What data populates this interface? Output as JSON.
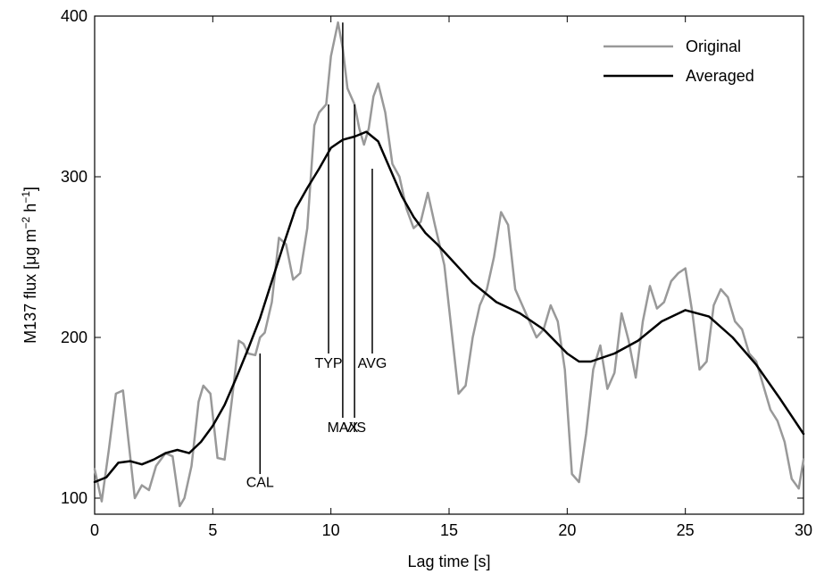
{
  "chart_data": {
    "type": "line",
    "xlabel": "Lag time [s]",
    "ylabel_parts": {
      "prefix": "M137 flux [μg m",
      "exp1": "−2",
      "mid": " h",
      "exp2": "−1",
      "suffix": "]"
    },
    "xlim": [
      0,
      30
    ],
    "ylim": [
      90,
      400
    ],
    "x_ticks": [
      0,
      5,
      10,
      15,
      20,
      25,
      30
    ],
    "y_ticks": [
      100,
      200,
      300,
      400
    ],
    "grid": false,
    "legend_position": "top-right",
    "series": [
      {
        "name": "Original",
        "color": "#999999",
        "x": [
          0,
          0.3,
          0.6,
          0.9,
          1.2,
          1.4,
          1.7,
          2.0,
          2.3,
          2.6,
          3.0,
          3.3,
          3.6,
          3.8,
          4.1,
          4.4,
          4.6,
          4.9,
          5.2,
          5.5,
          5.8,
          6.1,
          6.3,
          6.5,
          6.8,
          7.0,
          7.2,
          7.5,
          7.8,
          8.1,
          8.4,
          8.7,
          9.0,
          9.3,
          9.5,
          9.8,
          10.0,
          10.3,
          10.5,
          10.7,
          11.0,
          11.2,
          11.4,
          11.6,
          11.8,
          12.0,
          12.3,
          12.6,
          12.9,
          13.2,
          13.5,
          13.8,
          14.1,
          14.4,
          14.8,
          15.1,
          15.4,
          15.7,
          16.0,
          16.3,
          16.6,
          16.9,
          17.2,
          17.5,
          17.8,
          18.1,
          18.4,
          18.7,
          19.0,
          19.3,
          19.6,
          19.9,
          20.2,
          20.5,
          20.8,
          21.1,
          21.4,
          21.7,
          22.0,
          22.3,
          22.6,
          22.9,
          23.2,
          23.5,
          23.8,
          24.1,
          24.4,
          24.7,
          25.0,
          25.3,
          25.6,
          25.9,
          26.2,
          26.5,
          26.8,
          27.1,
          27.4,
          27.7,
          28.0,
          28.3,
          28.6,
          28.9,
          29.2,
          29.5,
          29.8,
          30.0
        ],
        "y": [
          118,
          98,
          130,
          165,
          167,
          140,
          100,
          108,
          105,
          120,
          128,
          126,
          95,
          100,
          120,
          160,
          170,
          165,
          125,
          124,
          160,
          198,
          196,
          190,
          189,
          200,
          203,
          222,
          262,
          258,
          236,
          240,
          268,
          332,
          340,
          345,
          375,
          396,
          380,
          355,
          345,
          330,
          320,
          330,
          350,
          358,
          340,
          308,
          300,
          280,
          268,
          272,
          290,
          270,
          245,
          205,
          165,
          170,
          200,
          220,
          230,
          250,
          278,
          270,
          230,
          220,
          210,
          200,
          205,
          220,
          210,
          180,
          115,
          110,
          140,
          180,
          195,
          168,
          178,
          215,
          198,
          175,
          210,
          232,
          218,
          222,
          235,
          240,
          243,
          215,
          180,
          185,
          220,
          230,
          225,
          210,
          205,
          190,
          185,
          170,
          155,
          148,
          135,
          112,
          106,
          124
        ]
      },
      {
        "name": "Averaged",
        "color": "#000000",
        "x": [
          0,
          0.5,
          1.0,
          1.5,
          2.0,
          2.5,
          3.0,
          3.5,
          4.0,
          4.5,
          5.0,
          5.5,
          6.0,
          6.5,
          7.0,
          7.5,
          8.0,
          8.5,
          9.0,
          9.5,
          10.0,
          10.5,
          11.0,
          11.5,
          12.0,
          12.5,
          13.0,
          13.5,
          14.0,
          14.5,
          15.0,
          16.0,
          17.0,
          18.0,
          19.0,
          20.0,
          20.5,
          21.0,
          22.0,
          23.0,
          24.0,
          25.0,
          26.0,
          27.0,
          28.0,
          29.0,
          30.0
        ],
        "y": [
          110,
          113,
          122,
          123,
          121,
          124,
          128,
          130,
          128,
          135,
          145,
          158,
          175,
          193,
          212,
          235,
          258,
          280,
          293,
          305,
          318,
          323,
          325,
          328,
          322,
          305,
          288,
          275,
          265,
          258,
          250,
          234,
          222,
          215,
          205,
          190,
          185,
          185,
          190,
          198,
          210,
          217,
          213,
          200,
          183,
          162,
          140
        ]
      }
    ],
    "annotations": [
      {
        "label": "CAL",
        "x": 7.0,
        "y_top": 190,
        "y_bottom": 115,
        "label_pos": "below",
        "label_y": 107
      },
      {
        "label": "TYP",
        "x": 9.9,
        "y_top": 345,
        "y_bottom": 190,
        "label_pos": "below",
        "label_y": 181
      },
      {
        "label": "MAX",
        "x": 10.5,
        "y_top": 396,
        "y_bottom": 150,
        "label_pos": "below",
        "label_y": 141
      },
      {
        "label": "VIS",
        "x": 11.0,
        "y_top": 345,
        "y_bottom": 150,
        "label_pos": "below",
        "label_y": 141
      },
      {
        "label": "AVG",
        "x": 11.75,
        "y_top": 305,
        "y_bottom": 190,
        "label_pos": "below",
        "label_y": 181
      }
    ]
  }
}
